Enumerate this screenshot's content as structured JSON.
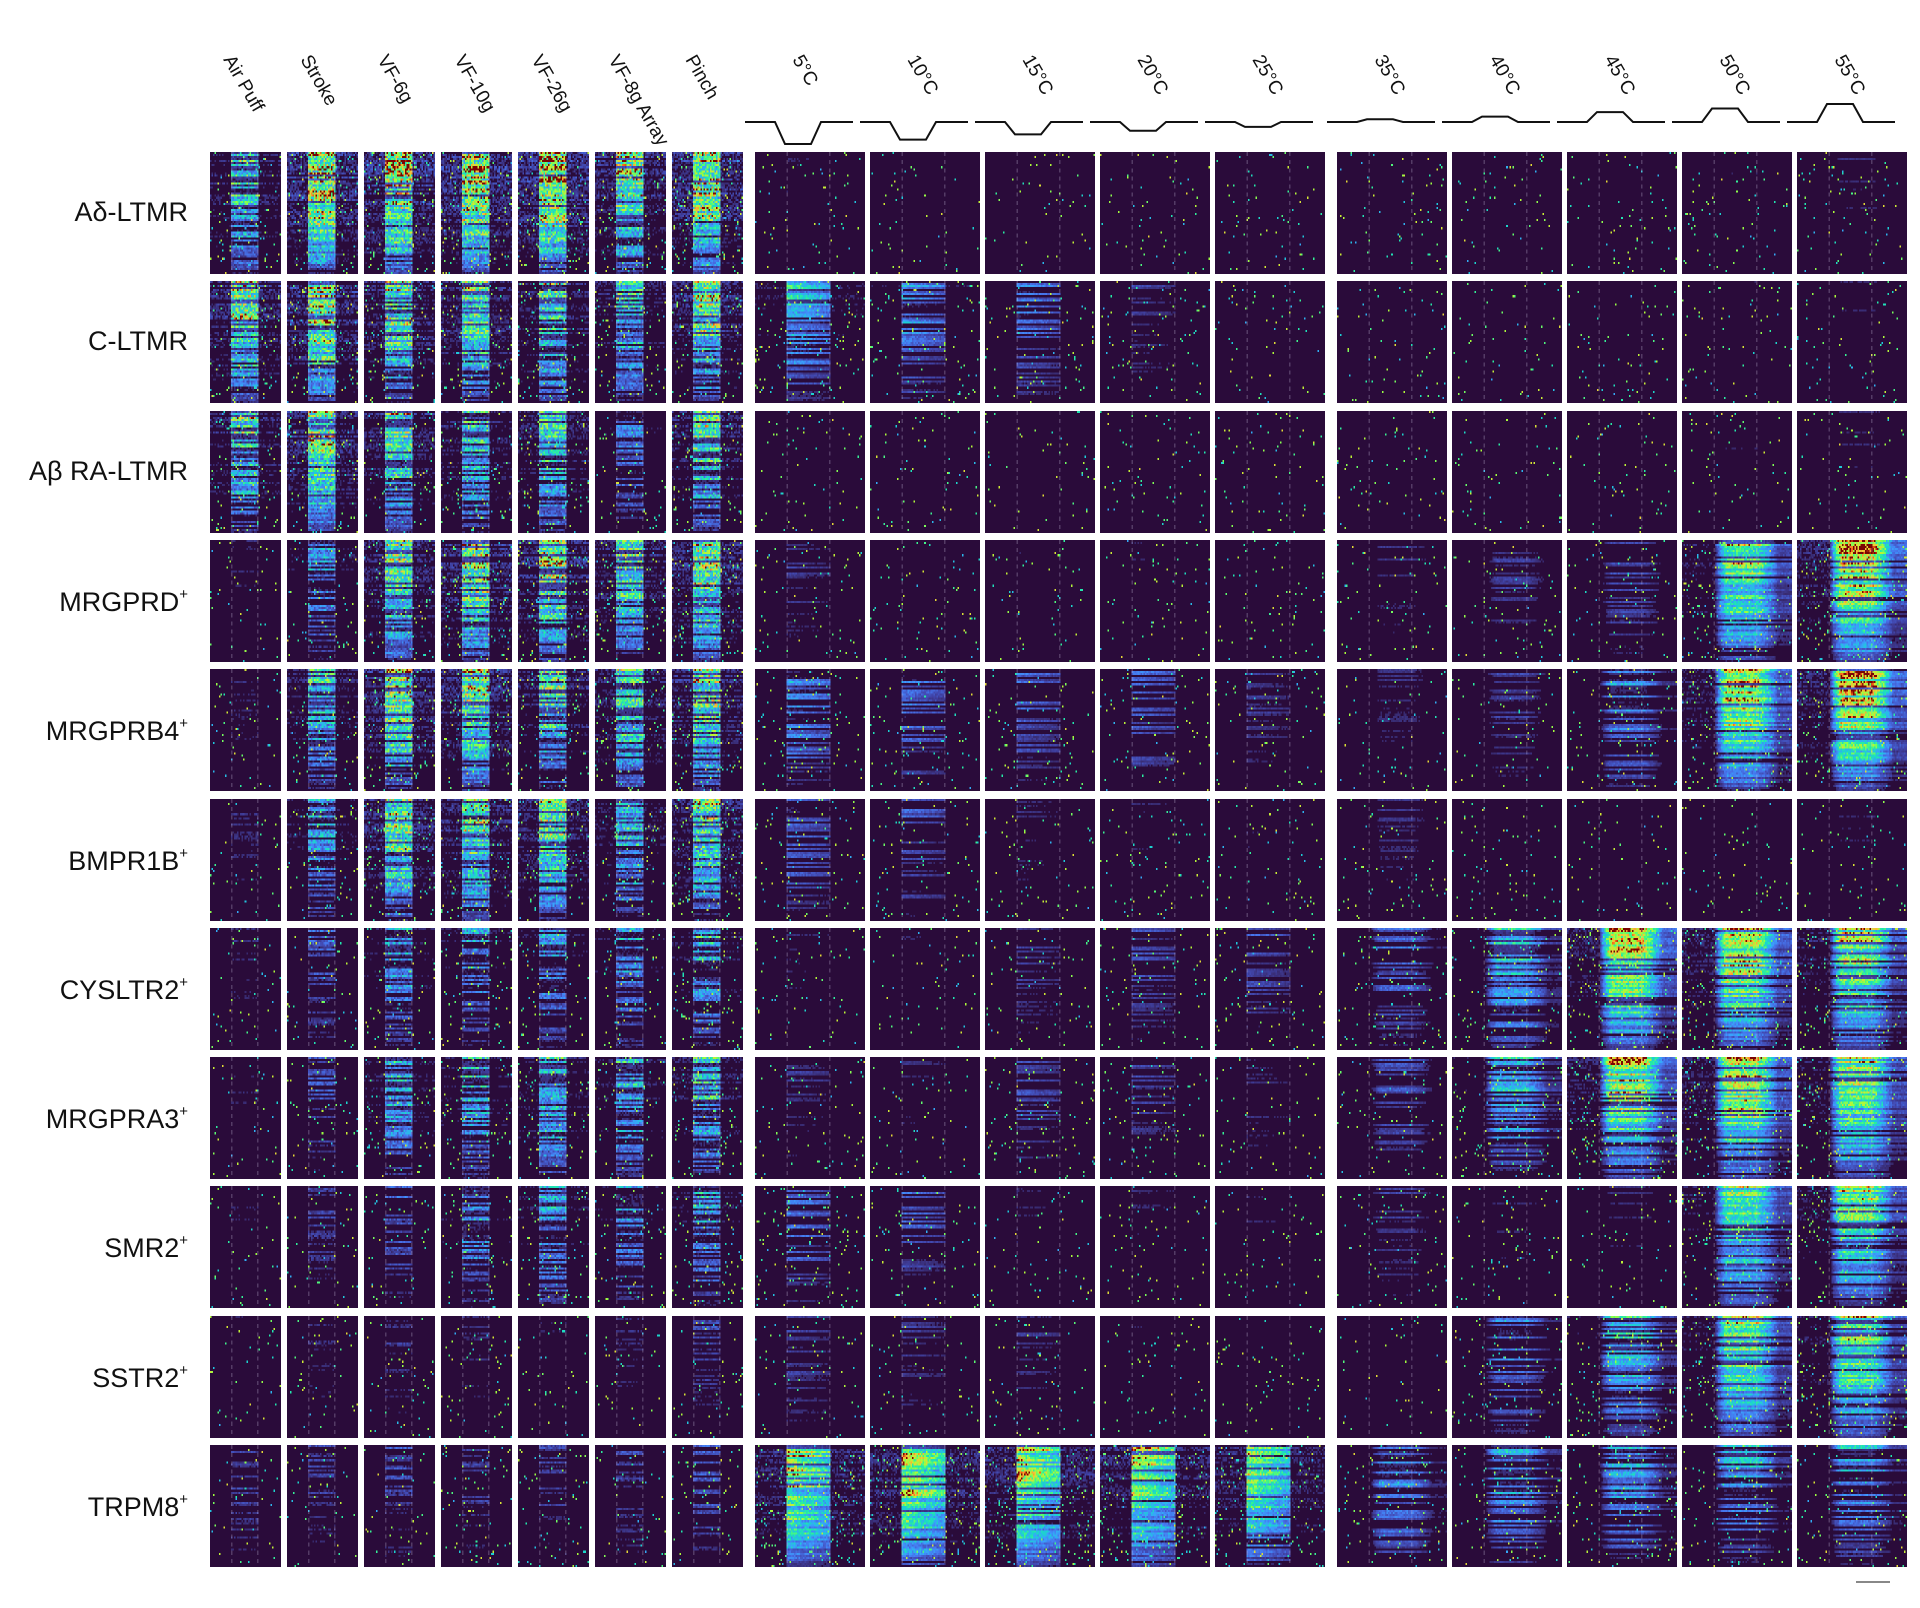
{
  "chart_data": {
    "type": "heatmap",
    "title": "",
    "xlabel": "",
    "ylabel": "",
    "colormap": "turbo",
    "colors": {
      "background": "#2a0b3a",
      "low": "#30123b",
      "high": "#7a0403",
      "separator": "#ffffff"
    },
    "mechanical_stimuli": [
      "Air Puff",
      "Stroke",
      "VF-6g",
      "VF-10g",
      "VF-26g",
      "VF-8g Array",
      "Pinch"
    ],
    "cold_stimuli": [
      "5°C",
      "10°C",
      "15°C",
      "20°C",
      "25°C"
    ],
    "heat_stimuli": [
      "35°C",
      "40°C",
      "45°C",
      "50°C",
      "55°C"
    ],
    "cold_step_depth": [
      1.0,
      0.8,
      0.56,
      0.4,
      0.22
    ],
    "heat_step_height": [
      0.15,
      0.3,
      0.55,
      0.75,
      1.0
    ],
    "neuron_types": [
      {
        "label": "Aδ-LTMR",
        "sup": "",
        "mechanical": [
          0.55,
          0.9,
          0.9,
          0.9,
          0.95,
          0.75,
          0.9
        ],
        "cold": [
          0.04,
          0.02,
          0.01,
          0.01,
          0.01
        ],
        "heat": [
          0.02,
          0.02,
          0.02,
          0.03,
          0.05
        ]
      },
      {
        "label": "C-LTMR",
        "sup": "",
        "mechanical": [
          0.7,
          0.85,
          0.7,
          0.65,
          0.6,
          0.5,
          0.7
        ],
        "cold": [
          0.45,
          0.35,
          0.25,
          0.1,
          0.02
        ],
        "heat": [
          0.01,
          0.01,
          0.02,
          0.03,
          0.04
        ]
      },
      {
        "label": "Aβ RA-LTMR",
        "sup": "",
        "mechanical": [
          0.6,
          0.75,
          0.6,
          0.5,
          0.5,
          0.25,
          0.6
        ],
        "cold": [
          0.01,
          0.01,
          0.01,
          0.01,
          0.01
        ],
        "heat": [
          0.01,
          0.02,
          0.03,
          0.04,
          0.05
        ]
      },
      {
        "label": "MRGPRD",
        "sup": "+",
        "mechanical": [
          0.05,
          0.3,
          0.7,
          0.75,
          0.75,
          0.6,
          0.75
        ],
        "cold": [
          0.1,
          0.03,
          0.03,
          0.04,
          0.03
        ],
        "heat": [
          0.06,
          0.1,
          0.15,
          0.75,
          0.95
        ]
      },
      {
        "label": "MRGPRB4",
        "sup": "+",
        "mechanical": [
          0.05,
          0.45,
          0.75,
          0.7,
          0.6,
          0.6,
          0.65
        ],
        "cold": [
          0.35,
          0.25,
          0.2,
          0.2,
          0.1
        ],
        "heat": [
          0.06,
          0.1,
          0.3,
          0.85,
          0.95
        ]
      },
      {
        "label": "BMPR1B",
        "sup": "+",
        "mechanical": [
          0.05,
          0.35,
          0.7,
          0.65,
          0.6,
          0.45,
          0.6
        ],
        "cold": [
          0.25,
          0.2,
          0.06,
          0.05,
          0.04
        ],
        "heat": [
          0.06,
          0.03,
          0.03,
          0.03,
          0.04
        ]
      },
      {
        "label": "CYSLTR2",
        "sup": "+",
        "mechanical": [
          0.05,
          0.15,
          0.35,
          0.3,
          0.3,
          0.3,
          0.4
        ],
        "cold": [
          0.05,
          0.04,
          0.1,
          0.15,
          0.15
        ],
        "heat": [
          0.2,
          0.45,
          0.85,
          0.85,
          0.75
        ]
      },
      {
        "label": "MRGPRA3",
        "sup": "+",
        "mechanical": [
          0.04,
          0.15,
          0.4,
          0.4,
          0.5,
          0.4,
          0.5
        ],
        "cold": [
          0.1,
          0.06,
          0.15,
          0.12,
          0.08
        ],
        "heat": [
          0.15,
          0.45,
          0.8,
          0.85,
          0.75
        ]
      },
      {
        "label": "SMR2",
        "sup": "+",
        "mechanical": [
          0.04,
          0.1,
          0.15,
          0.35,
          0.35,
          0.3,
          0.35
        ],
        "cold": [
          0.25,
          0.2,
          0.05,
          0.05,
          0.05
        ],
        "heat": [
          0.1,
          0.05,
          0.05,
          0.65,
          0.65
        ]
      },
      {
        "label": "SSTR2",
        "sup": "+",
        "mechanical": [
          0.03,
          0.05,
          0.08,
          0.05,
          0.05,
          0.05,
          0.1
        ],
        "cold": [
          0.12,
          0.1,
          0.08,
          0.03,
          0.02
        ],
        "heat": [
          0.02,
          0.25,
          0.45,
          0.7,
          0.75
        ]
      },
      {
        "label": "TRPM8",
        "sup": "+",
        "mechanical": [
          0.1,
          0.1,
          0.12,
          0.1,
          0.1,
          0.1,
          0.15
        ],
        "cold": [
          0.95,
          0.95,
          0.9,
          0.85,
          0.75
        ],
        "heat": [
          0.3,
          0.35,
          0.35,
          0.35,
          0.35
        ]
      }
    ]
  }
}
